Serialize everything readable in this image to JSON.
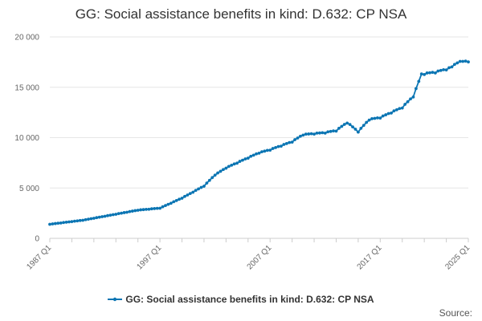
{
  "chart_data": {
    "type": "line",
    "title": "GG: Social assistance benefits in kind: D.632: CP NSA",
    "xlabel": "",
    "ylabel": "",
    "ylim": [
      0,
      20000
    ],
    "y_ticks": [
      0,
      5000,
      10000,
      15000,
      20000
    ],
    "y_tick_labels": [
      "0",
      "5 000",
      "10 000",
      "15 000",
      "20 000"
    ],
    "x_tick_labels": [
      "1987 Q1",
      "1997 Q1",
      "2007 Q1",
      "2017 Q1",
      "2025 Q1"
    ],
    "x_tick_positions": [
      1987,
      1997,
      2007,
      2017,
      2025
    ],
    "x_range": [
      1987,
      2025
    ],
    "grid": "horizontal",
    "legend_position": "bottom",
    "color": "#0b75b3",
    "series": [
      {
        "name": "GG: Social assistance benefits in kind: D.632: CP NSA",
        "start": "1987 Q1",
        "frequency": "quarterly",
        "anchors": [
          [
            1987.0,
            1400
          ],
          [
            1990.0,
            1800
          ],
          [
            1992.0,
            2200
          ],
          [
            1995.0,
            2800
          ],
          [
            1997.0,
            3000
          ],
          [
            1999.0,
            4000
          ],
          [
            2001.0,
            5200
          ],
          [
            2002.0,
            6300
          ],
          [
            2003.0,
            7000
          ],
          [
            2004.0,
            7500
          ],
          [
            2005.0,
            8000
          ],
          [
            2006.0,
            8500
          ],
          [
            2007.0,
            8800
          ],
          [
            2008.0,
            9200
          ],
          [
            2009.0,
            9600
          ],
          [
            2010.0,
            10300
          ],
          [
            2011.0,
            10400
          ],
          [
            2012.0,
            10500
          ],
          [
            2013.0,
            10700
          ],
          [
            2014.0,
            11500
          ],
          [
            2015.0,
            10600
          ],
          [
            2016.0,
            11800
          ],
          [
            2017.0,
            12000
          ],
          [
            2018.0,
            12500
          ],
          [
            2019.0,
            13000
          ],
          [
            2020.0,
            14100
          ],
          [
            2020.75,
            16300
          ],
          [
            2022.0,
            16500
          ],
          [
            2023.0,
            16800
          ],
          [
            2023.5,
            17000
          ],
          [
            2024.0,
            17500
          ],
          [
            2025.0,
            17600
          ]
        ]
      }
    ]
  },
  "legend": {
    "label": "GG: Social assistance benefits in kind: D.632: CP NSA"
  },
  "footer": {
    "source_label": "Source:"
  }
}
